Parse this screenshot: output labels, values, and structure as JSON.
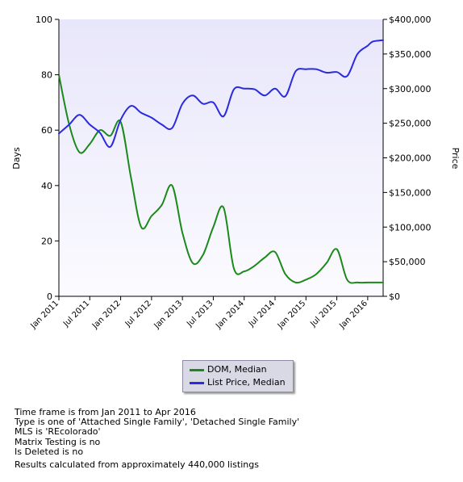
{
  "chart_data": {
    "type": "line",
    "x": [
      "Jan 2011",
      "Mar 2011",
      "May 2011",
      "Jul 2011",
      "Sep 2011",
      "Nov 2011",
      "Jan 2012",
      "Mar 2012",
      "May 2012",
      "Jul 2012",
      "Sep 2012",
      "Nov 2012",
      "Jan 2013",
      "Mar 2013",
      "May 2013",
      "Jul 2013",
      "Sep 2013",
      "Nov 2013",
      "Jan 2014",
      "Mar 2014",
      "May 2014",
      "Jul 2014",
      "Sep 2014",
      "Nov 2014",
      "Jan 2015",
      "Mar 2015",
      "May 2015",
      "Jul 2015",
      "Sep 2015",
      "Nov 2015",
      "Jan 2016",
      "Feb 2016",
      "Apr 2016"
    ],
    "xticks": [
      "Jan 2011",
      "Jul 2011",
      "Jan 2012",
      "Jul 2012",
      "Jan 2013",
      "Jul 2013",
      "Jan 2014",
      "Jul 2014",
      "Jan 2015",
      "Jul 2015",
      "Jan 2016"
    ],
    "series": [
      {
        "name": "DOM, Median",
        "axis": "left",
        "color": "#1a8a1a",
        "values": [
          80,
          62,
          52,
          55,
          60,
          58,
          63,
          43,
          25,
          29,
          33,
          40,
          23,
          12,
          15,
          25,
          32,
          10,
          9,
          11,
          14,
          16,
          8,
          5,
          6,
          8,
          12,
          17,
          6,
          5,
          5,
          5,
          5
        ]
      },
      {
        "name": "List Price, Median",
        "axis": "right",
        "color": "#2a2ae0",
        "values": [
          235000,
          248000,
          262000,
          248000,
          236000,
          216000,
          255000,
          275000,
          265000,
          258000,
          248000,
          243000,
          278000,
          290000,
          278000,
          280000,
          260000,
          299000,
          300000,
          299000,
          290000,
          300000,
          289000,
          325000,
          328000,
          328000,
          323000,
          324000,
          318000,
          350000,
          362000,
          368000,
          370000
        ]
      }
    ],
    "ylabel_left": "Days",
    "ylabel_right": "Price",
    "ylim_left": [
      0,
      100
    ],
    "ylim_right": [
      0,
      400000
    ],
    "yticks_left": [
      "0",
      "20",
      "40",
      "60",
      "80",
      "100"
    ],
    "yticks_right": [
      "$0",
      "$50,000",
      "$100,000",
      "$150,000",
      "$200,000",
      "$250,000",
      "$300,000",
      "$350,000",
      "$400,000"
    ],
    "legend": [
      "DOM, Median",
      "List Price, Median"
    ],
    "legend_position": "bottom-center",
    "grid": false
  },
  "notes": [
    "Time frame is from Jan 2011 to Apr 2016",
    "Type is one of 'Attached Single Family', 'Detached Single Family'",
    "MLS is 'REcolorado'",
    "Matrix Testing is no",
    "Is Deleted is no"
  ],
  "result_text": "Results calculated from approximately 440,000 listings",
  "colors": {
    "plot_bg_top": "#ebe9fa",
    "plot_bg_bottom": "#fafaff",
    "dom": "#1a8a1a",
    "price": "#2a2ae0"
  }
}
